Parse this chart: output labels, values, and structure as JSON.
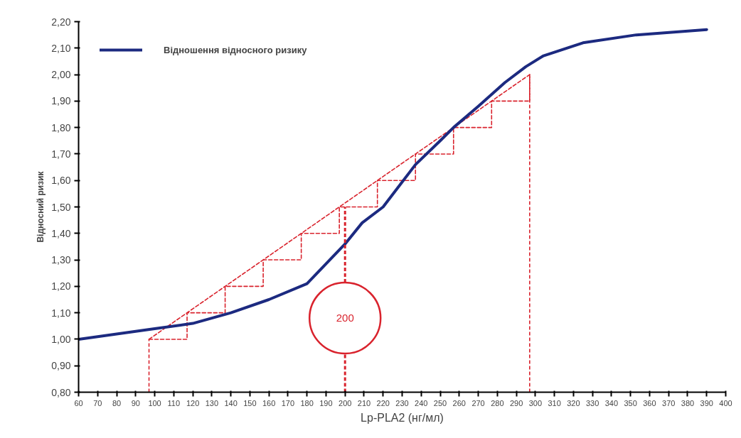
{
  "chart_data": {
    "type": "line",
    "xlabel": "Lp-PLA2 (нг/мл)",
    "ylabel": "Відносний ризик",
    "xlim": [
      60,
      400
    ],
    "ylim": [
      0.8,
      2.2
    ],
    "xticks": [
      60,
      70,
      80,
      90,
      100,
      110,
      120,
      130,
      140,
      150,
      160,
      170,
      180,
      190,
      200,
      210,
      220,
      230,
      240,
      250,
      260,
      270,
      280,
      290,
      300,
      310,
      320,
      330,
      340,
      350,
      360,
      370,
      380,
      390,
      400
    ],
    "yticks": [
      {
        "value": 0.8,
        "label": "0,80"
      },
      {
        "value": 0.9,
        "label": "0,90"
      },
      {
        "value": 1.0,
        "label": "1,00"
      },
      {
        "value": 1.1,
        "label": "1,10"
      },
      {
        "value": 1.2,
        "label": "1,20"
      },
      {
        "value": 1.3,
        "label": "1,30"
      },
      {
        "value": 1.4,
        "label": "1,40"
      },
      {
        "value": 1.5,
        "label": "1,50"
      },
      {
        "value": 1.6,
        "label": "1,60"
      },
      {
        "value": 1.7,
        "label": "1,70"
      },
      {
        "value": 1.8,
        "label": "1,80"
      },
      {
        "value": 1.9,
        "label": "1,90"
      },
      {
        "value": 2.0,
        "label": "2,00"
      },
      {
        "value": 2.1,
        "label": "2,10"
      },
      {
        "value": 2.2,
        "label": "2,20"
      }
    ],
    "grid": false,
    "legend": "top left",
    "series": [
      {
        "color": "#d9232d",
        "line_style": "dashed",
        "x": [
          97,
          297
        ],
        "values": [
          1.0,
          2.0
        ]
      },
      {
        "type": "step",
        "color": "#d9232d",
        "line_style": "dashed",
        "x": [
          97,
          117,
          137,
          157,
          177,
          197,
          217,
          237,
          257,
          277,
          297
        ],
        "values": [
          1.0,
          1.1,
          1.2,
          1.3,
          1.4,
          1.5,
          1.6,
          1.7,
          1.8,
          1.9,
          2.0
        ]
      },
      {
        "name": "Відношення відносного ризику",
        "color": "#1c2a80",
        "line_style": "solid",
        "x": [
          60,
          100,
          120,
          140,
          160,
          180,
          200,
          209,
          220,
          237,
          250,
          257,
          270,
          284,
          295,
          304,
          325,
          353,
          390
        ],
        "values": [
          1.0,
          1.04,
          1.06,
          1.1,
          1.15,
          1.21,
          1.36,
          1.44,
          1.5,
          1.66,
          1.75,
          1.8,
          1.88,
          1.97,
          2.03,
          2.07,
          2.12,
          2.15,
          2.17
        ]
      }
    ],
    "ref_lines": [
      {
        "axis": "x",
        "value": 97,
        "color": "#d9232d",
        "line_style": "dashed"
      },
      {
        "axis": "x",
        "value": 200,
        "label": "200",
        "color": "#d9232d",
        "line_style": "dashed"
      },
      {
        "axis": "x",
        "value": 297,
        "color": "#d9232d",
        "line_style": "dashed"
      }
    ]
  }
}
